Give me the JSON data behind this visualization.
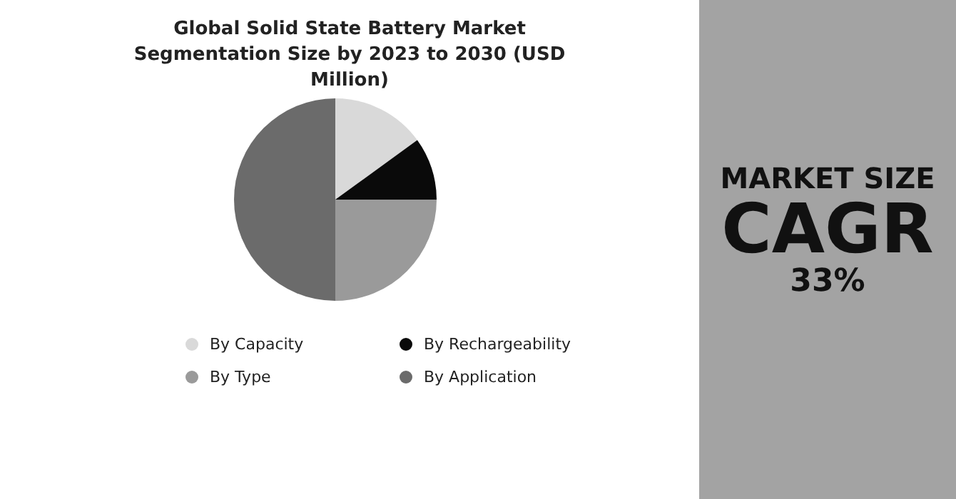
{
  "chart_data": [
    {
      "type": "pie",
      "title": "Global Solid State Battery Market Segmentation Size by 2023 to 2030 (USD Million)",
      "categories": [
        "By Capacity",
        "By Rechargeability",
        "By Type",
        "By Application"
      ],
      "values": [
        15,
        10,
        25,
        50
      ],
      "colors": [
        "#d9d9d9",
        "#0a0a0a",
        "#9a9a9a",
        "#6b6b6b"
      ],
      "legend": "bottom"
    },
    {
      "type": "other",
      "annotations": [
        "MARKET SIZE",
        "CAGR",
        "33%"
      ]
    }
  ]
}
